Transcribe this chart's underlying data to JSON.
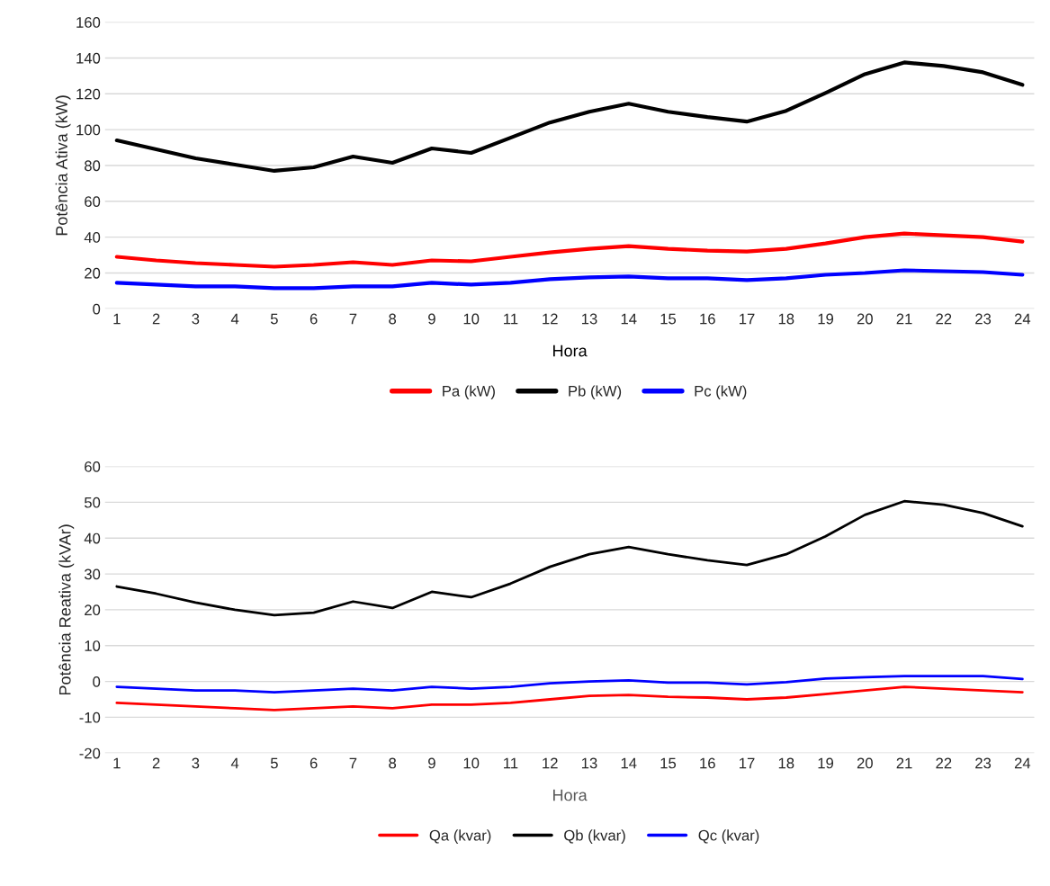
{
  "chart_data": [
    {
      "type": "line",
      "xlabel": "Hora",
      "ylabel": "Potência Ativa (kW)",
      "categories": [
        "1",
        "2",
        "3",
        "4",
        "5",
        "6",
        "7",
        "8",
        "9",
        "10",
        "11",
        "12",
        "13",
        "14",
        "15",
        "16",
        "17",
        "18",
        "19",
        "20",
        "21",
        "22",
        "23",
        "24"
      ],
      "ylim": [
        0,
        160
      ],
      "yticks": [
        0,
        20,
        40,
        60,
        80,
        100,
        120,
        140,
        160
      ],
      "grid": "y",
      "legend": "bottom",
      "marker": "none",
      "line_style": "solid",
      "series": [
        {
          "name": "Pa (kW)",
          "color": "#ff0000",
          "values": [
            29,
            27,
            25.5,
            24.5,
            23.5,
            24.5,
            26,
            24.5,
            27,
            26.5,
            29,
            31.5,
            33.5,
            35,
            33.5,
            32.5,
            32,
            33.5,
            36.5,
            40,
            42,
            41,
            40,
            37.5
          ]
        },
        {
          "name": "Pb (kW)",
          "color": "#000000",
          "values": [
            94,
            89,
            84,
            80.5,
            77,
            79,
            85,
            81.5,
            89.5,
            87,
            95.5,
            104,
            110,
            114.5,
            110,
            107,
            104.5,
            110.5,
            120.5,
            131,
            137.5,
            135.5,
            132,
            125
          ]
        },
        {
          "name": "Pc (kW)",
          "color": "#0000ff",
          "values": [
            14.5,
            13.5,
            12.5,
            12.5,
            11.5,
            11.5,
            12.5,
            12.5,
            14.5,
            13.5,
            14.5,
            16.5,
            17.5,
            18,
            17,
            17,
            16,
            17,
            19,
            20,
            21.5,
            21,
            20.5,
            19
          ]
        }
      ]
    },
    {
      "type": "line",
      "xlabel": "Hora",
      "ylabel": "Potência Reativa (kVAr)",
      "categories": [
        "1",
        "2",
        "3",
        "4",
        "5",
        "6",
        "7",
        "8",
        "9",
        "10",
        "11",
        "12",
        "13",
        "14",
        "15",
        "16",
        "17",
        "18",
        "19",
        "20",
        "21",
        "22",
        "23",
        "24"
      ],
      "ylim": [
        -20,
        60
      ],
      "yticks": [
        {
          "value": -20,
          "label": "-20"
        },
        {
          "value": -10,
          "label": "-10"
        },
        0,
        10,
        20,
        30,
        40,
        50,
        60
      ],
      "grid": "y",
      "legend": "bottom",
      "marker": "none",
      "line_style": "solid",
      "series": [
        {
          "name": "Qa (kvar)",
          "color": "#ff0000",
          "values": [
            -6,
            -6.5,
            -7,
            -7.5,
            -8,
            -7.5,
            -7,
            -7.5,
            -6.5,
            -6.5,
            -6,
            -5,
            -4,
            -3.8,
            -4.3,
            -4.5,
            -5,
            -4.5,
            -3.5,
            -2.5,
            -1.5,
            -2,
            -2.5,
            -3
          ]
        },
        {
          "name": "Qb (kvar)",
          "color": "#000000",
          "values": [
            26.5,
            24.5,
            22,
            20,
            18.5,
            19.2,
            22.3,
            20.5,
            25,
            23.5,
            27.3,
            32,
            35.5,
            37.5,
            35.5,
            33.8,
            32.5,
            35.5,
            40.5,
            46.5,
            50.3,
            49.3,
            47,
            43.3
          ]
        },
        {
          "name": "Qc (kvar)",
          "color": "#0000ff",
          "values": [
            -1.5,
            -2,
            -2.5,
            -2.5,
            -3,
            -2.5,
            -2,
            -2.5,
            -1.5,
            -2,
            -1.5,
            -0.5,
            0,
            0.3,
            -0.3,
            -0.3,
            -0.8,
            -0.2,
            0.8,
            1.2,
            1.5,
            1.5,
            1.5,
            0.7
          ]
        }
      ]
    }
  ]
}
